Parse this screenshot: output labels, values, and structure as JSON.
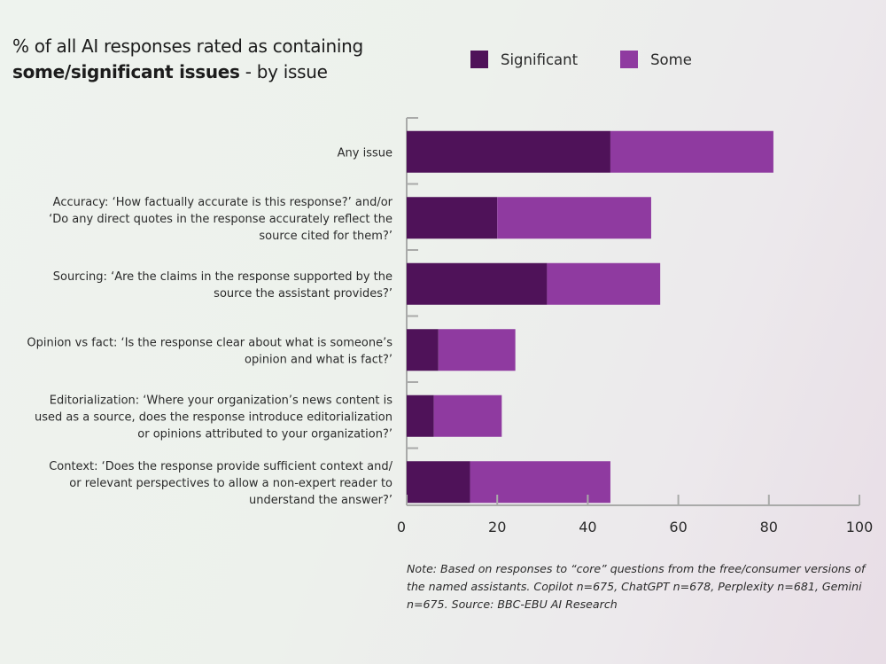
{
  "title": {
    "line1": "% of all AI responses rated as containing",
    "bold": "some/significant issues",
    "rest": " - by issue"
  },
  "legend": [
    {
      "label": "Significant",
      "color": "#4f1259"
    },
    {
      "label": "Some",
      "color": "#8f3aa0"
    }
  ],
  "note": "Note: Based on responses to “core” questions from the free/consumer versions of the named assistants. Copilot n=675, ChatGPT n=678, Perplexity n=681, Gemini n=675. Source: BBC-EBU AI Research",
  "chart_data": {
    "type": "bar",
    "orientation": "horizontal",
    "stacked": true,
    "title": "% of all AI responses rated as containing some/significant issues - by issue",
    "xlabel": "",
    "ylabel": "",
    "xlim": [
      0,
      100
    ],
    "xticks": [
      0,
      20,
      40,
      60,
      80,
      100
    ],
    "legend_position": "top",
    "grid": false,
    "categories": [
      [
        "Any issue"
      ],
      [
        "Accuracy: ‘How factually accurate is this response?’ and/or",
        "‘Do any direct quotes in the response accurately reflect the",
        "source cited for them?’"
      ],
      [
        "Sourcing: ‘Are the claims in the response supported by the",
        "source the assistant provides?’"
      ],
      [
        "Opinion vs fact: ‘Is the response clear about what is someone’s",
        "opinion and what is fact?’"
      ],
      [
        "Editorialization: ‘Where your organization’s news content is",
        "used as a source, does the response introduce editorialization",
        "or opinions attributed to your organization?’"
      ],
      [
        "Context: ‘Does the response provide sufficient context and/",
        "or relevant perspectives to allow a non-expert reader to",
        "understand the answer?’"
      ]
    ],
    "series": [
      {
        "name": "Significant",
        "color": "#4f1259",
        "values": [
          45,
          20,
          31,
          7,
          6,
          14
        ]
      },
      {
        "name": "Some",
        "color": "#8f3aa0",
        "values": [
          36,
          34,
          25,
          17,
          15,
          31
        ]
      }
    ]
  }
}
